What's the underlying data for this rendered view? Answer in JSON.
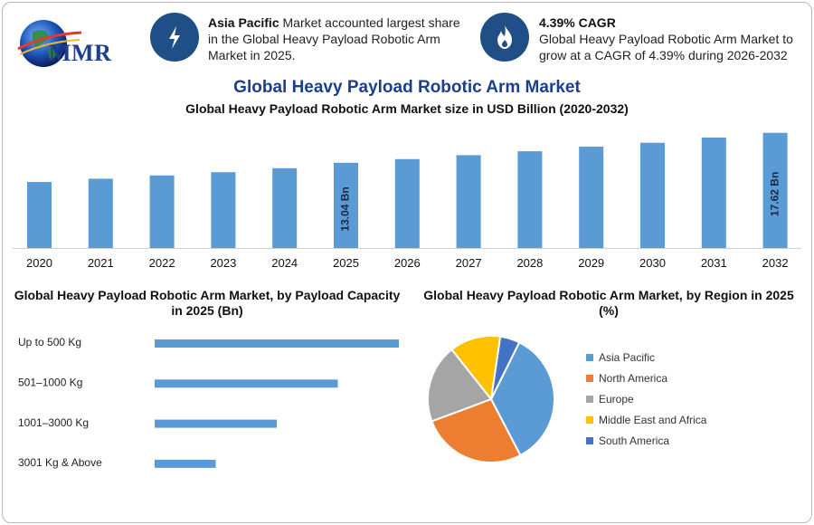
{
  "header": {
    "logo_text": "MMR",
    "highlight1": {
      "icon": "lightning-icon",
      "bold": "Asia Pacific",
      "text": " Market accounted largest share in the Global Heavy Payload Robotic Arm Market in 2025."
    },
    "highlight2": {
      "icon": "flame-icon",
      "bold": "4.39% CAGR",
      "text": "Global Heavy Payload Robotic Arm Market to grow at a CAGR of 4.39% during 2026-2032"
    }
  },
  "title": "Global Heavy Payload Robotic Arm Market",
  "colors": {
    "bar": "#5b9bd5",
    "title": "#1c3e8f",
    "circle": "#1f4f86"
  },
  "chart_data": [
    {
      "type": "bar",
      "title": "Global Heavy Payload Robotic Arm Market size in USD Billion (2020-2032)",
      "categories": [
        "2020",
        "2021",
        "2022",
        "2023",
        "2024",
        "2025",
        "2026",
        "2027",
        "2028",
        "2029",
        "2030",
        "2031",
        "2032"
      ],
      "values": [
        10.1,
        10.6,
        11.1,
        11.6,
        12.2,
        13.04,
        13.6,
        14.2,
        14.8,
        15.5,
        16.1,
        16.9,
        17.62
      ],
      "data_labels": {
        "5": "13.04 Bn",
        "12": "17.62 Bn"
      },
      "ylim": [
        0,
        18
      ]
    },
    {
      "type": "bar",
      "orientation": "horizontal",
      "title": "Global Heavy Payload Robotic Arm Market, by Payload Capacity in 2025 (Bn)",
      "categories": [
        "Up to 500 Kg",
        "501–1000 Kg",
        "1001–3000 Kg",
        "3001 Kg & Above"
      ],
      "values": [
        4.0,
        3.0,
        2.0,
        1.0
      ]
    },
    {
      "type": "pie",
      "title": "Global Heavy Payload Robotic Arm Market, by Region in 2025 (%)",
      "labels": [
        "Asia Pacific",
        "North America",
        "Europe",
        "Middle East and Africa",
        "South America"
      ],
      "values": [
        35,
        27,
        20,
        13,
        5
      ],
      "colors": [
        "#5b9bd5",
        "#ed7d31",
        "#a5a5a5",
        "#ffc000",
        "#4472c4"
      ],
      "legend_position": "right"
    }
  ]
}
